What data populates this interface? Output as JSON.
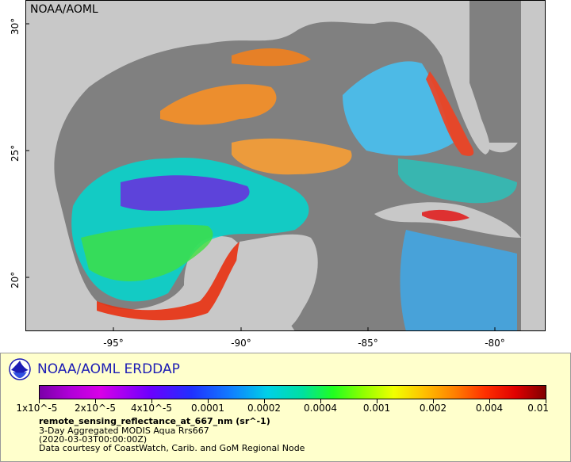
{
  "map": {
    "watermark": "NOAA/AOML",
    "y_ticks": [
      "30°",
      "25°",
      "20°"
    ],
    "x_ticks": [
      "-95°",
      "-90°",
      "-85°",
      "-80°"
    ]
  },
  "legend": {
    "title": "NOAA/AOML ERDDAP",
    "colorbar_labels": [
      "1x10^-5",
      "2x10^-5",
      "4x10^-5",
      "0.0001",
      "0.0002",
      "0.0004",
      "0.001",
      "0.002",
      "0.004",
      "0.01"
    ],
    "variable": "remote_sensing_reflectance_at_667_nm (sr^-1)",
    "line1": "3-Day Aggregated MODIS Aqua Rrs667",
    "line2": "(2020-03-03T00:00:00Z)",
    "line3": "Data courtesy of CoastWatch, Carib. and GoM Regional Node"
  },
  "colors": {
    "land": "#c8c8c8",
    "no_data_water": "#808080",
    "legend_bg": "#ffffcc",
    "title_blue": "#1c1cb4"
  }
}
